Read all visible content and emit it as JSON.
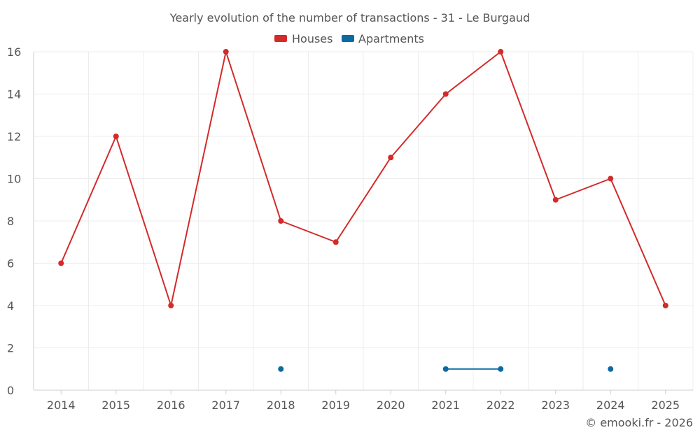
{
  "chart_data": {
    "type": "line",
    "title": "Yearly evolution of the number of transactions - 31 - Le Burgaud",
    "categories": [
      "2014",
      "2015",
      "2016",
      "2017",
      "2018",
      "2019",
      "2020",
      "2021",
      "2022",
      "2023",
      "2024",
      "2025"
    ],
    "series": [
      {
        "name": "Houses",
        "color": "#d32a2a",
        "values": [
          6,
          12,
          4,
          16,
          8,
          7,
          11,
          14,
          16,
          9,
          10,
          4
        ]
      },
      {
        "name": "Apartments",
        "color": "#0b6aa2",
        "values": [
          null,
          null,
          null,
          null,
          1,
          null,
          null,
          1,
          1,
          null,
          1,
          null
        ]
      }
    ],
    "yticks": [
      0,
      2,
      4,
      6,
      8,
      10,
      12,
      14,
      16
    ],
    "ylim": [
      0,
      16
    ],
    "xlabel": "",
    "ylabel": "",
    "grid": true,
    "legend": "top-center"
  },
  "credit": "© emooki.fr - 2026"
}
